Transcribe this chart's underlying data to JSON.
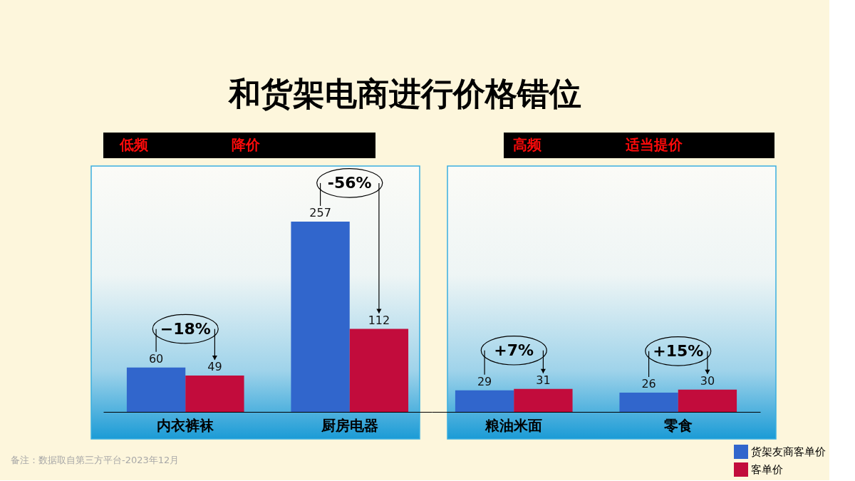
{
  "chart_data": [
    {
      "type": "bar",
      "title": "和货架电商进行价格错位",
      "categories": [
        "内衣裤袜",
        "厨房电器"
      ],
      "series": [
        {
          "name": "货架友商客单价",
          "color": "#3166cc",
          "values": [
            60,
            257
          ]
        },
        {
          "name": "客单价",
          "color": "#c20c3c",
          "values": [
            49,
            112
          ]
        }
      ],
      "ylim": [
        0,
        330
      ],
      "data_labels": true,
      "tick_labels": "x",
      "legend": "bottom right",
      "annotations": [
        "低频",
        "降价",
        "−18%",
        "-56%",
        "备注：数据取自第三方平台-2023年12月"
      ]
    },
    {
      "type": "bar",
      "categories": [
        "粮油米面",
        "零食"
      ],
      "series": [
        {
          "color": "#3166cc",
          "values": [
            29,
            26
          ]
        },
        {
          "color": "#c20c3c",
          "values": [
            31,
            30
          ]
        }
      ],
      "ylim": [
        0,
        330
      ],
      "data_labels": true,
      "tick_labels": "x",
      "annotations": [
        "高频",
        "适当提价",
        "+7%",
        "+15%"
      ]
    }
  ]
}
